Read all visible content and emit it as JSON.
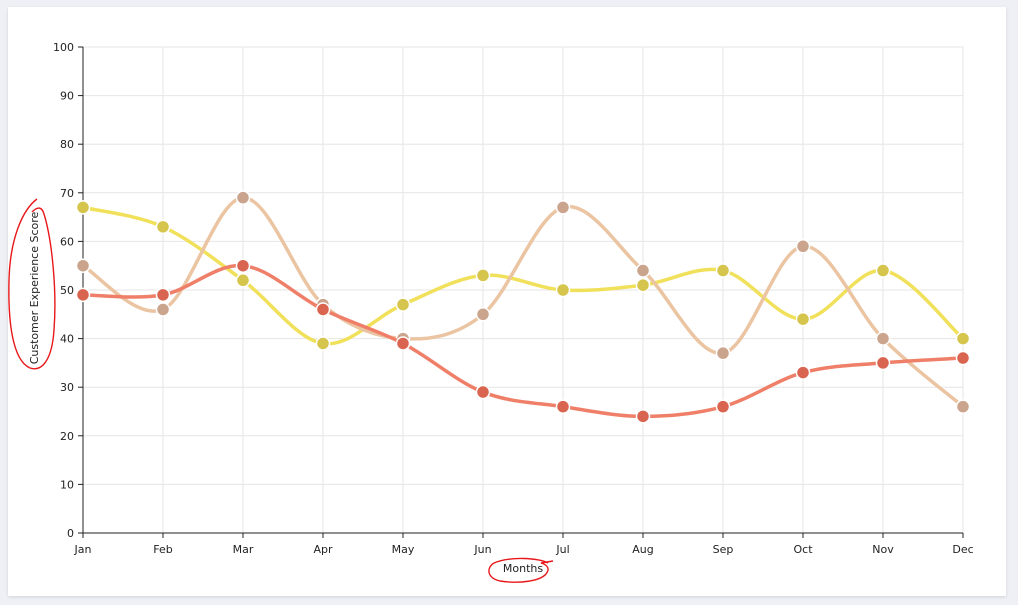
{
  "chart_data": {
    "type": "line",
    "title": "",
    "xlabel": "Months",
    "ylabel": "Customer Experience Score",
    "categories": [
      "Jan",
      "Feb",
      "Mar",
      "Apr",
      "May",
      "Jun",
      "Jul",
      "Aug",
      "Sep",
      "Oct",
      "Nov",
      "Dec"
    ],
    "ylim": [
      0,
      100
    ],
    "yticks": [
      0,
      10,
      20,
      30,
      40,
      50,
      60,
      70,
      80,
      90,
      100
    ],
    "grid": true,
    "legend": "none",
    "series": [
      {
        "values": [
          67,
          63,
          52,
          39,
          47,
          53,
          50,
          51,
          54,
          44,
          54,
          40
        ],
        "line_color": "#f0e05a",
        "marker_color": "#d6c54c"
      },
      {
        "values": [
          55,
          46,
          69,
          47,
          40,
          45,
          67,
          54,
          37,
          59,
          40,
          26
        ],
        "line_color": "#ebc4a2",
        "marker_color": "#caa48c"
      },
      {
        "values": [
          49,
          49,
          55,
          46,
          39,
          29,
          26,
          24,
          26,
          33,
          35,
          36
        ],
        "line_color": "#ef7f68",
        "marker_color": "#d9644f"
      }
    ],
    "annotation_color": "#e8181a"
  }
}
